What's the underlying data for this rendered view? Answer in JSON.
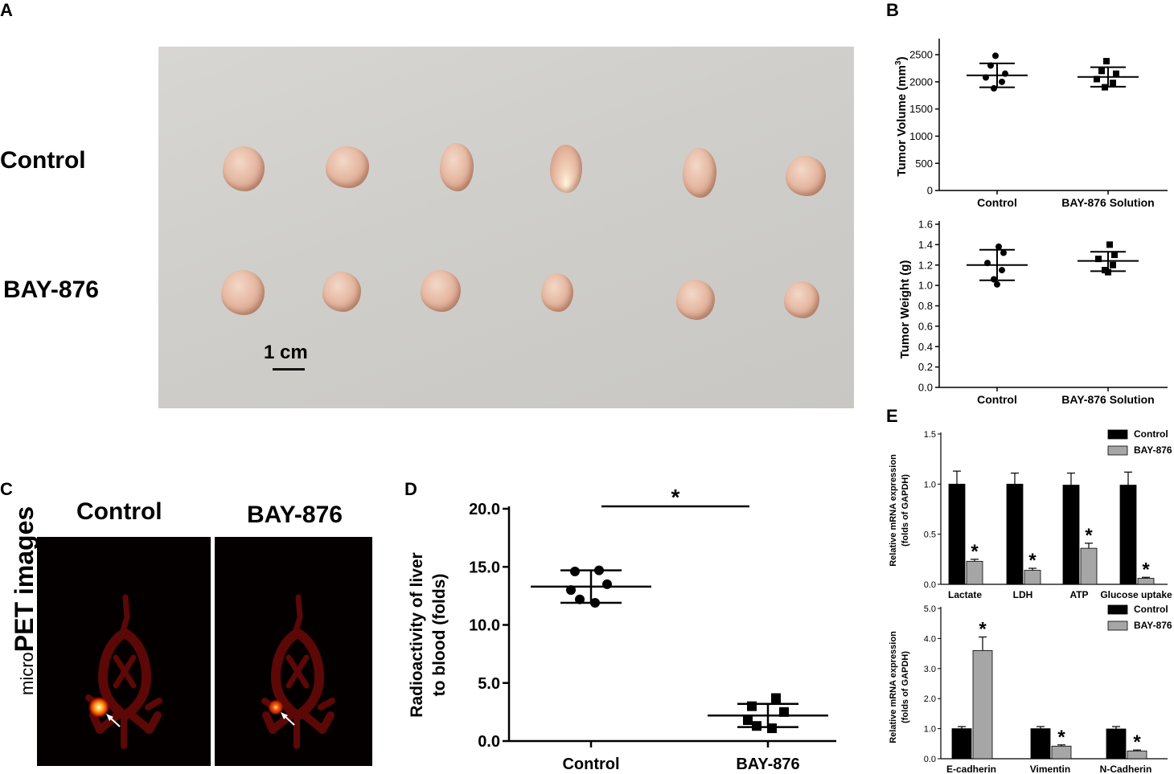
{
  "panels": {
    "A": {
      "letter": "A",
      "row_labels": [
        "Control",
        "BAY-876"
      ],
      "scale_label": "1 cm"
    },
    "B": {
      "letter": "B"
    },
    "C": {
      "letter": "C",
      "col_labels": [
        "Control",
        "BAY-876"
      ],
      "side_label_prefix": "micro",
      "side_label_main": "PET images"
    },
    "D": {
      "letter": "D",
      "significance": "*"
    },
    "E": {
      "letter": "E"
    }
  },
  "chart_data": [
    {
      "id": "B1",
      "type": "scatter",
      "ylabel": "Tumor Volume (mm",
      "ylabel_sup": "3",
      "ylabel_end": ")",
      "categories": [
        "Control",
        "BAY-876 Solution"
      ],
      "yticks": [
        0,
        500,
        1000,
        1500,
        2000,
        2500
      ],
      "ylim": [
        0,
        2700
      ],
      "series": [
        {
          "name": "Control",
          "marker": "circle",
          "values": [
            2480,
            2300,
            2150,
            2080,
            2000,
            1880
          ],
          "mean": 2120,
          "sd_low": 1900,
          "sd_high": 2340
        },
        {
          "name": "BAY-876 Solution",
          "marker": "square",
          "values": [
            2380,
            2200,
            2150,
            2050,
            1980,
            1900
          ],
          "mean": 2090,
          "sd_low": 1910,
          "sd_high": 2270
        }
      ]
    },
    {
      "id": "B2",
      "type": "scatter",
      "ylabel": "Tumor Weight (g)",
      "categories": [
        "Control",
        "BAY-876 Solution"
      ],
      "yticks": [
        "0.0",
        "0.2",
        "0.4",
        "0.6",
        "0.8",
        "1.0",
        "1.2",
        "1.4",
        "1.6"
      ],
      "ylim": [
        0,
        1.6
      ],
      "series": [
        {
          "name": "Control",
          "marker": "circle",
          "values": [
            1.38,
            1.32,
            1.22,
            1.15,
            1.06,
            1.01
          ],
          "mean": 1.2,
          "sd_low": 1.05,
          "sd_high": 1.35
        },
        {
          "name": "BAY-876 Solution",
          "marker": "square",
          "values": [
            1.4,
            1.3,
            1.26,
            1.2,
            1.15,
            1.13
          ],
          "mean": 1.24,
          "sd_low": 1.14,
          "sd_high": 1.33
        }
      ]
    },
    {
      "id": "D",
      "type": "scatter",
      "ylabel_line1": "Radioactivity of liver",
      "ylabel_line2": "to blood (folds)",
      "categories": [
        "Control",
        "BAY-876"
      ],
      "yticks": [
        "0.0",
        "5.0",
        "10.0",
        "15.0",
        "20.0"
      ],
      "ylim": [
        0,
        20
      ],
      "series": [
        {
          "name": "Control",
          "marker": "circle",
          "values": [
            14.7,
            14.6,
            13.5,
            13.0,
            12.2,
            11.9
          ],
          "mean": 13.3,
          "sd_low": 11.9,
          "sd_high": 14.7
        },
        {
          "name": "BAY-876",
          "marker": "square",
          "values": [
            3.7,
            3.0,
            2.5,
            1.8,
            1.3,
            1.1
          ],
          "mean": 2.2,
          "sd_low": 1.2,
          "sd_high": 3.2
        }
      ]
    },
    {
      "id": "E1",
      "type": "bar",
      "ylabel_line1": "Relative mRNA expression",
      "ylabel_line2": "(folds of GAPDH)",
      "categories": [
        "Lactate",
        "LDH",
        "ATP",
        "Glucose uptake"
      ],
      "yticks": [
        "0.0",
        "0.5",
        "1.0",
        "1.5"
      ],
      "ylim": [
        0,
        1.5
      ],
      "legend": "top-right",
      "series": [
        {
          "name": "Control",
          "color": "#000000",
          "values": [
            1.0,
            1.0,
            0.99,
            0.99
          ],
          "errors": [
            0.13,
            0.11,
            0.12,
            0.13
          ]
        },
        {
          "name": "BAY-876",
          "color": "#a6a6a6",
          "values": [
            0.23,
            0.14,
            0.36,
            0.06
          ],
          "errors": [
            0.02,
            0.02,
            0.05,
            0.01
          ]
        }
      ],
      "significance": [
        "*",
        "*",
        "*",
        "*"
      ]
    },
    {
      "id": "E2",
      "type": "bar",
      "ylabel_line1": "Relative mRNA expression",
      "ylabel_line2": "(folds of GAPDH)",
      "categories": [
        "E-cadherin",
        "Vimentin",
        "N-Cadherin"
      ],
      "yticks": [
        "0.0",
        "1.0",
        "2.0",
        "3.0",
        "4.0",
        "5.0"
      ],
      "ylim": [
        0,
        5
      ],
      "legend": "top-right",
      "series": [
        {
          "name": "Control",
          "color": "#000000",
          "values": [
            1.0,
            1.0,
            0.99
          ],
          "errors": [
            0.07,
            0.07,
            0.08
          ]
        },
        {
          "name": "BAY-876",
          "color": "#a6a6a6",
          "values": [
            3.6,
            0.42,
            0.26
          ],
          "errors": [
            0.45,
            0.04,
            0.03
          ]
        }
      ],
      "significance": [
        "*",
        "*",
        "*"
      ]
    }
  ]
}
